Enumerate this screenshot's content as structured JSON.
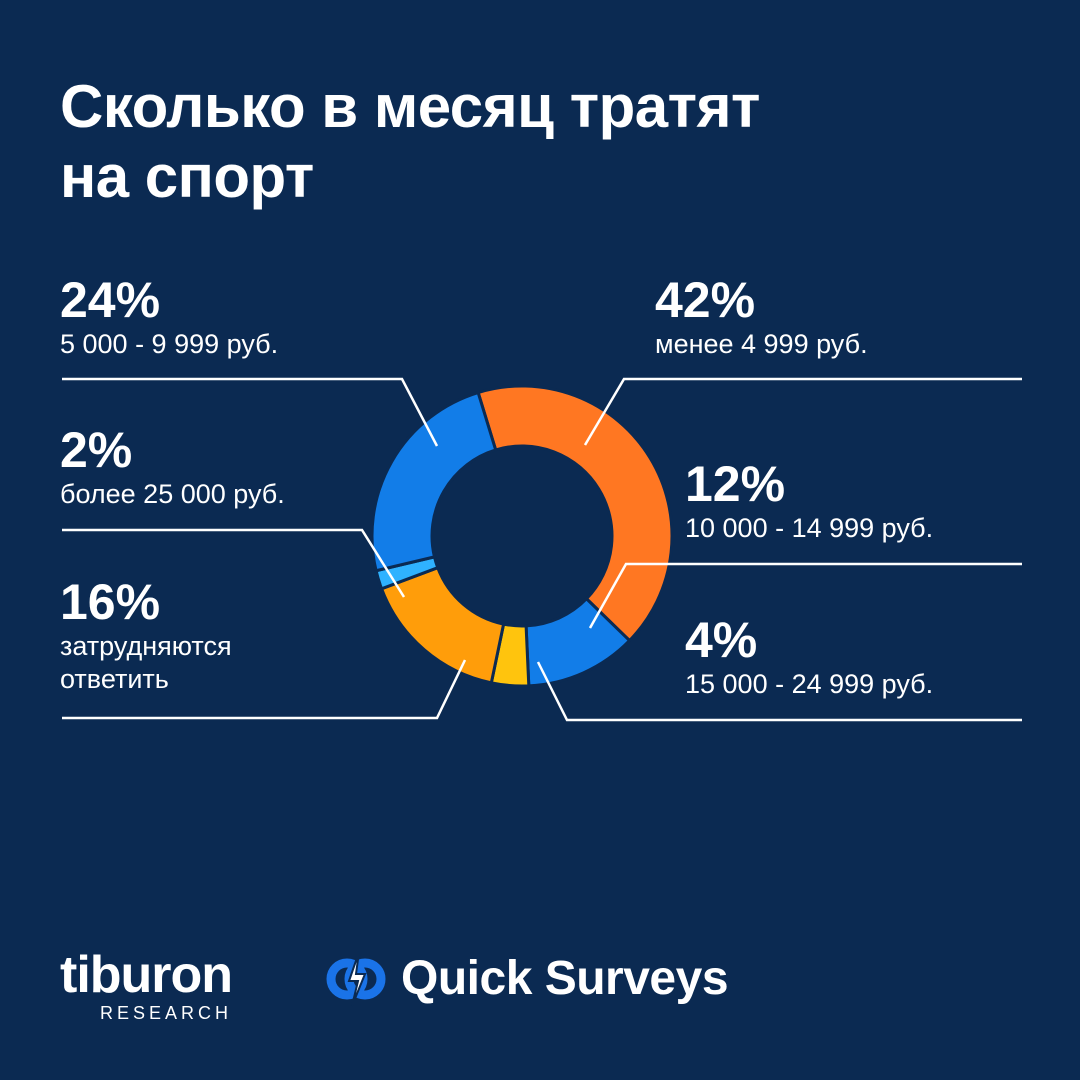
{
  "title_lines": [
    "Сколько в месяц тратят",
    "на спорт"
  ],
  "chart_data": {
    "type": "pie",
    "title": "Сколько в месяц тратят на спорт",
    "slices": [
      {
        "label": "менее 4 999 руб.",
        "value": 42,
        "value_label": "42%",
        "color": "#ff7722"
      },
      {
        "label": "10 000 - 14 999 руб.",
        "value": 12,
        "value_label": "12%",
        "color": "#127de8"
      },
      {
        "label": "15 000 - 24 999 руб.",
        "value": 4,
        "value_label": "4%",
        "color": "#ffc40d"
      },
      {
        "label": "затрудняются ответить",
        "value": 16,
        "value_label": "16%",
        "color": "#ff9d0a"
      },
      {
        "label": "более 25 000 руб.",
        "value": 2,
        "value_label": "2%",
        "color": "#2fb2ff"
      },
      {
        "label": "5 000 - 9 999 руб.",
        "value": 24,
        "value_label": "24%",
        "color": "#127de8"
      }
    ],
    "legend": "callouts around donut"
  },
  "colors": {
    "background": "#0b2a52",
    "text": "#ffffff",
    "separator": "#0b2a52"
  },
  "logos": {
    "tiburon": {
      "word": "tiburon",
      "sub": "RESEARCH"
    },
    "quick_surveys": {
      "word": "Quick Surveys",
      "icon": "quick-surveys-logo-icon"
    }
  }
}
